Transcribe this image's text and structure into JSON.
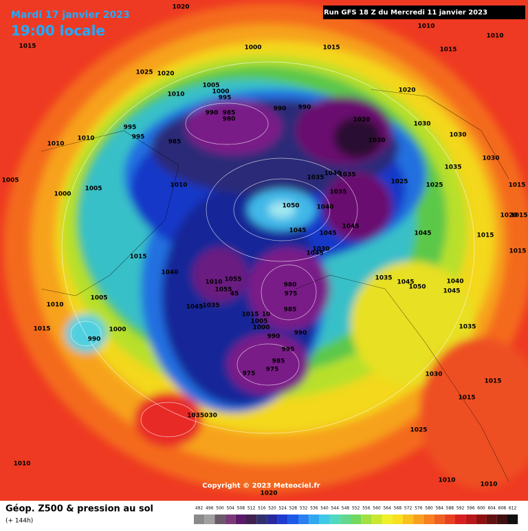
{
  "header": {
    "date": "Mardi 17 janvier 2023",
    "time": "19:00 locale",
    "run": "Run GFS 18 Z du Mercredi 11 janvier 2023"
  },
  "map": {
    "pressure_labels": [
      "1020",
      "1010",
      "1010",
      "1015",
      "1000",
      "1015",
      "1015",
      "1025",
      "1020",
      "1005",
      "1000",
      "995",
      "1010",
      "1020",
      "990",
      "985",
      "980",
      "990",
      "990",
      "1020",
      "1030",
      "1030",
      "995",
      "995",
      "1010",
      "985",
      "1030",
      "1010",
      "1035",
      "1030",
      "1040",
      "1035",
      "1035",
      "1025",
      "1025",
      "1015",
      "1005",
      "1000",
      "1005",
      "1010",
      "1035",
      "1050",
      "1040",
      "1020",
      "1015",
      "1045",
      "1045",
      "1045",
      "1045",
      "1015",
      "1030",
      "1045",
      "1015",
      "1015",
      "1040",
      "1035",
      "1045",
      "1050",
      "1040",
      "1055",
      "1010",
      "1055",
      "45",
      "980",
      "975",
      "1045",
      "1045",
      "1035",
      "1015",
      "10",
      "1005",
      "1000",
      "985",
      "1005",
      "1010",
      "1035",
      "1015",
      "1000",
      "990",
      "990",
      "990",
      "995",
      "985",
      "975",
      "975",
      "1030",
      "1015",
      "1015",
      "1035030",
      "1025",
      "1010",
      "1010",
      "1010",
      "1020"
    ]
  },
  "copyright": "Copyright © 2023 Meteociel.fr",
  "legend": {
    "title": "Géop. Z500 & pression au sol",
    "subtitle": "(+ 144h)",
    "scale": [
      492,
      496,
      500,
      504,
      508,
      512,
      516,
      520,
      524,
      528,
      532,
      536,
      540,
      544,
      548,
      552,
      556,
      560,
      564,
      568,
      572,
      576,
      580,
      584,
      588,
      592,
      596,
      600,
      604,
      608,
      612
    ]
  }
}
